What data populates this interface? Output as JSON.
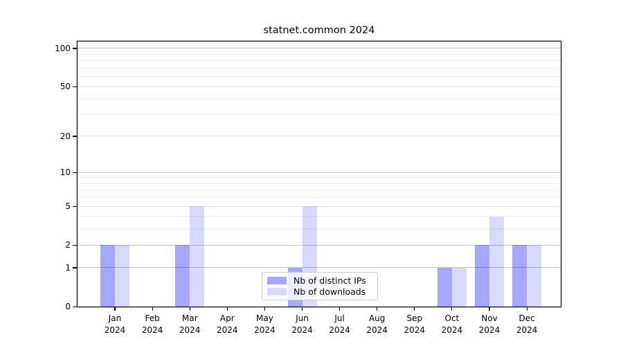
{
  "title": "statnet.common 2024",
  "chart_data": {
    "type": "bar",
    "title": "statnet.common 2024",
    "categories": [
      {
        "month": "Jan",
        "year": "2024"
      },
      {
        "month": "Feb",
        "year": "2024"
      },
      {
        "month": "Mar",
        "year": "2024"
      },
      {
        "month": "Apr",
        "year": "2024"
      },
      {
        "month": "May",
        "year": "2024"
      },
      {
        "month": "Jun",
        "year": "2024"
      },
      {
        "month": "Jul",
        "year": "2024"
      },
      {
        "month": "Aug",
        "year": "2024"
      },
      {
        "month": "Sep",
        "year": "2024"
      },
      {
        "month": "Oct",
        "year": "2024"
      },
      {
        "month": "Nov",
        "year": "2024"
      },
      {
        "month": "Dec",
        "year": "2024"
      }
    ],
    "series": [
      {
        "name": "Nb of distinct IPs",
        "color": "rgba(0,0,240,0.35)",
        "values": [
          2,
          0,
          2,
          0,
          0,
          1,
          0,
          0,
          0,
          1,
          2,
          2
        ]
      },
      {
        "name": "Nb of downloads",
        "color": "rgba(0,0,240,0.15)",
        "values": [
          2,
          0,
          5,
          0,
          0,
          5,
          0,
          0,
          0,
          1,
          4,
          2
        ]
      }
    ],
    "yscale": "log1p",
    "ylim": [
      0,
      113.3
    ],
    "yticks": [
      0,
      1,
      2,
      5,
      10,
      20,
      50,
      100
    ],
    "grid": {
      "major_dark": [
        1,
        2,
        10,
        100
      ],
      "major_light": [
        5,
        20,
        50
      ],
      "minor": [
        3,
        4,
        6,
        7,
        8,
        9,
        30,
        40,
        60,
        70,
        80,
        90
      ]
    },
    "colors": {
      "grid_major_dark": "#c2c2c2",
      "grid_major_light": "#e3e3e3",
      "grid_minor": "#efefef",
      "spine": "#000000"
    },
    "legend_position": "bottom-center",
    "grid_on": true
  }
}
